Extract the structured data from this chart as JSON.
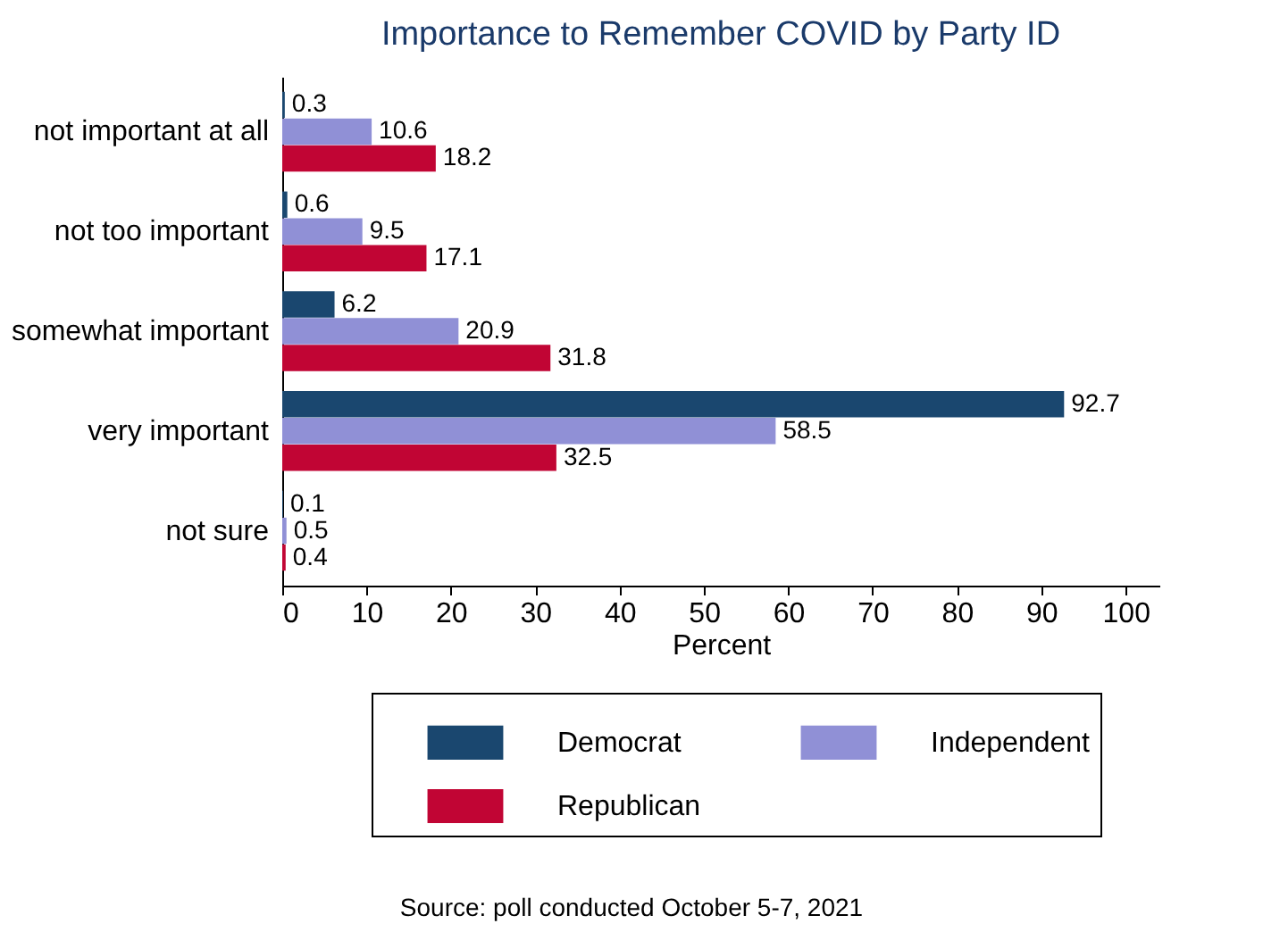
{
  "chart_data": {
    "type": "bar",
    "orientation": "horizontal",
    "title": "Importance to Remember COVID by Party ID",
    "xlabel": "Percent",
    "categories": [
      "not important at all",
      "not too important",
      "somewhat important",
      "very important",
      "not sure"
    ],
    "series": [
      {
        "name": "Democrat",
        "color": "#1a476f",
        "values": [
          0.3,
          0.6,
          6.2,
          92.7,
          0.1
        ]
      },
      {
        "name": "Independent",
        "color": "#9090d6",
        "values": [
          10.6,
          9.5,
          20.9,
          58.5,
          0.5
        ]
      },
      {
        "name": "Republican",
        "color": "#c10534",
        "values": [
          18.2,
          17.1,
          31.8,
          32.5,
          0.4
        ]
      }
    ],
    "xlim": [
      0,
      104
    ],
    "xticks": [
      0,
      10,
      20,
      30,
      40,
      50,
      60,
      70,
      80,
      90,
      100
    ],
    "data_labels": true,
    "legend": "bottom",
    "grid": false,
    "annotations": [
      "Source: poll conducted October 5-7, 2021"
    ]
  }
}
